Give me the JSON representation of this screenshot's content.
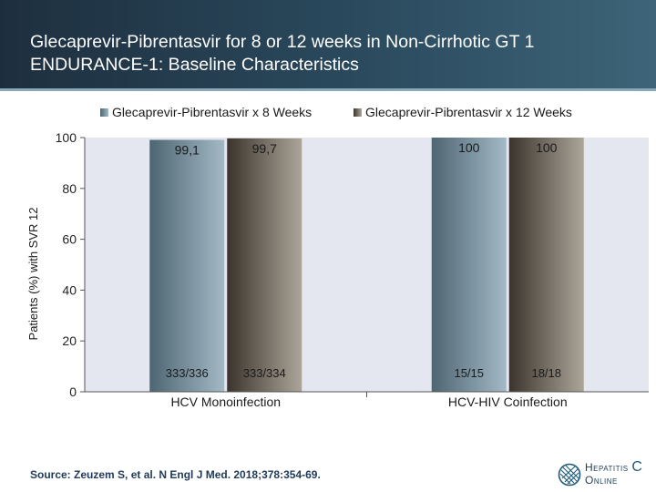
{
  "slide": {
    "title_line1": "Glecaprevir-Pibrentasvir for 8 or 12 weeks in Non-Cirrhotic GT 1",
    "title_line2": "ENDURANCE-1: Baseline Characteristics",
    "source": "Source: Zeuzem S, et al. N Engl J Med. 2018;378:354-69.",
    "logo_line1_prefix": "Hepatitis",
    "logo_line1_suffix": "C",
    "logo_line2": "Online"
  },
  "chart_data": {
    "type": "bar",
    "ylabel": "Patients (%) with SVR 12",
    "ylim": [
      0,
      100
    ],
    "yticks": [
      0,
      20,
      40,
      60,
      80,
      100
    ],
    "grid": false,
    "legend_position": "top",
    "categories": [
      "HCV Monoinfection",
      "HCV-HIV Coinfection"
    ],
    "series": [
      {
        "name": "Glecaprevir-Pibrentasvir x 8 Weeks",
        "values": [
          99.1,
          100
        ],
        "value_labels": [
          "99,1",
          "100"
        ],
        "fraction_labels": [
          "333/336",
          "15/15"
        ],
        "color": "#4e6572",
        "color_light": "#a3b9c6"
      },
      {
        "name": "Glecaprevir-Pibrentasvir  x 12 Weeks",
        "values": [
          99.7,
          100
        ],
        "value_labels": [
          "99,7",
          "100"
        ],
        "fraction_labels": [
          "333/334",
          "18/18"
        ],
        "color": "#3b342c",
        "color_light": "#aca69a"
      }
    ],
    "plot_background": "#e4e7ef"
  }
}
